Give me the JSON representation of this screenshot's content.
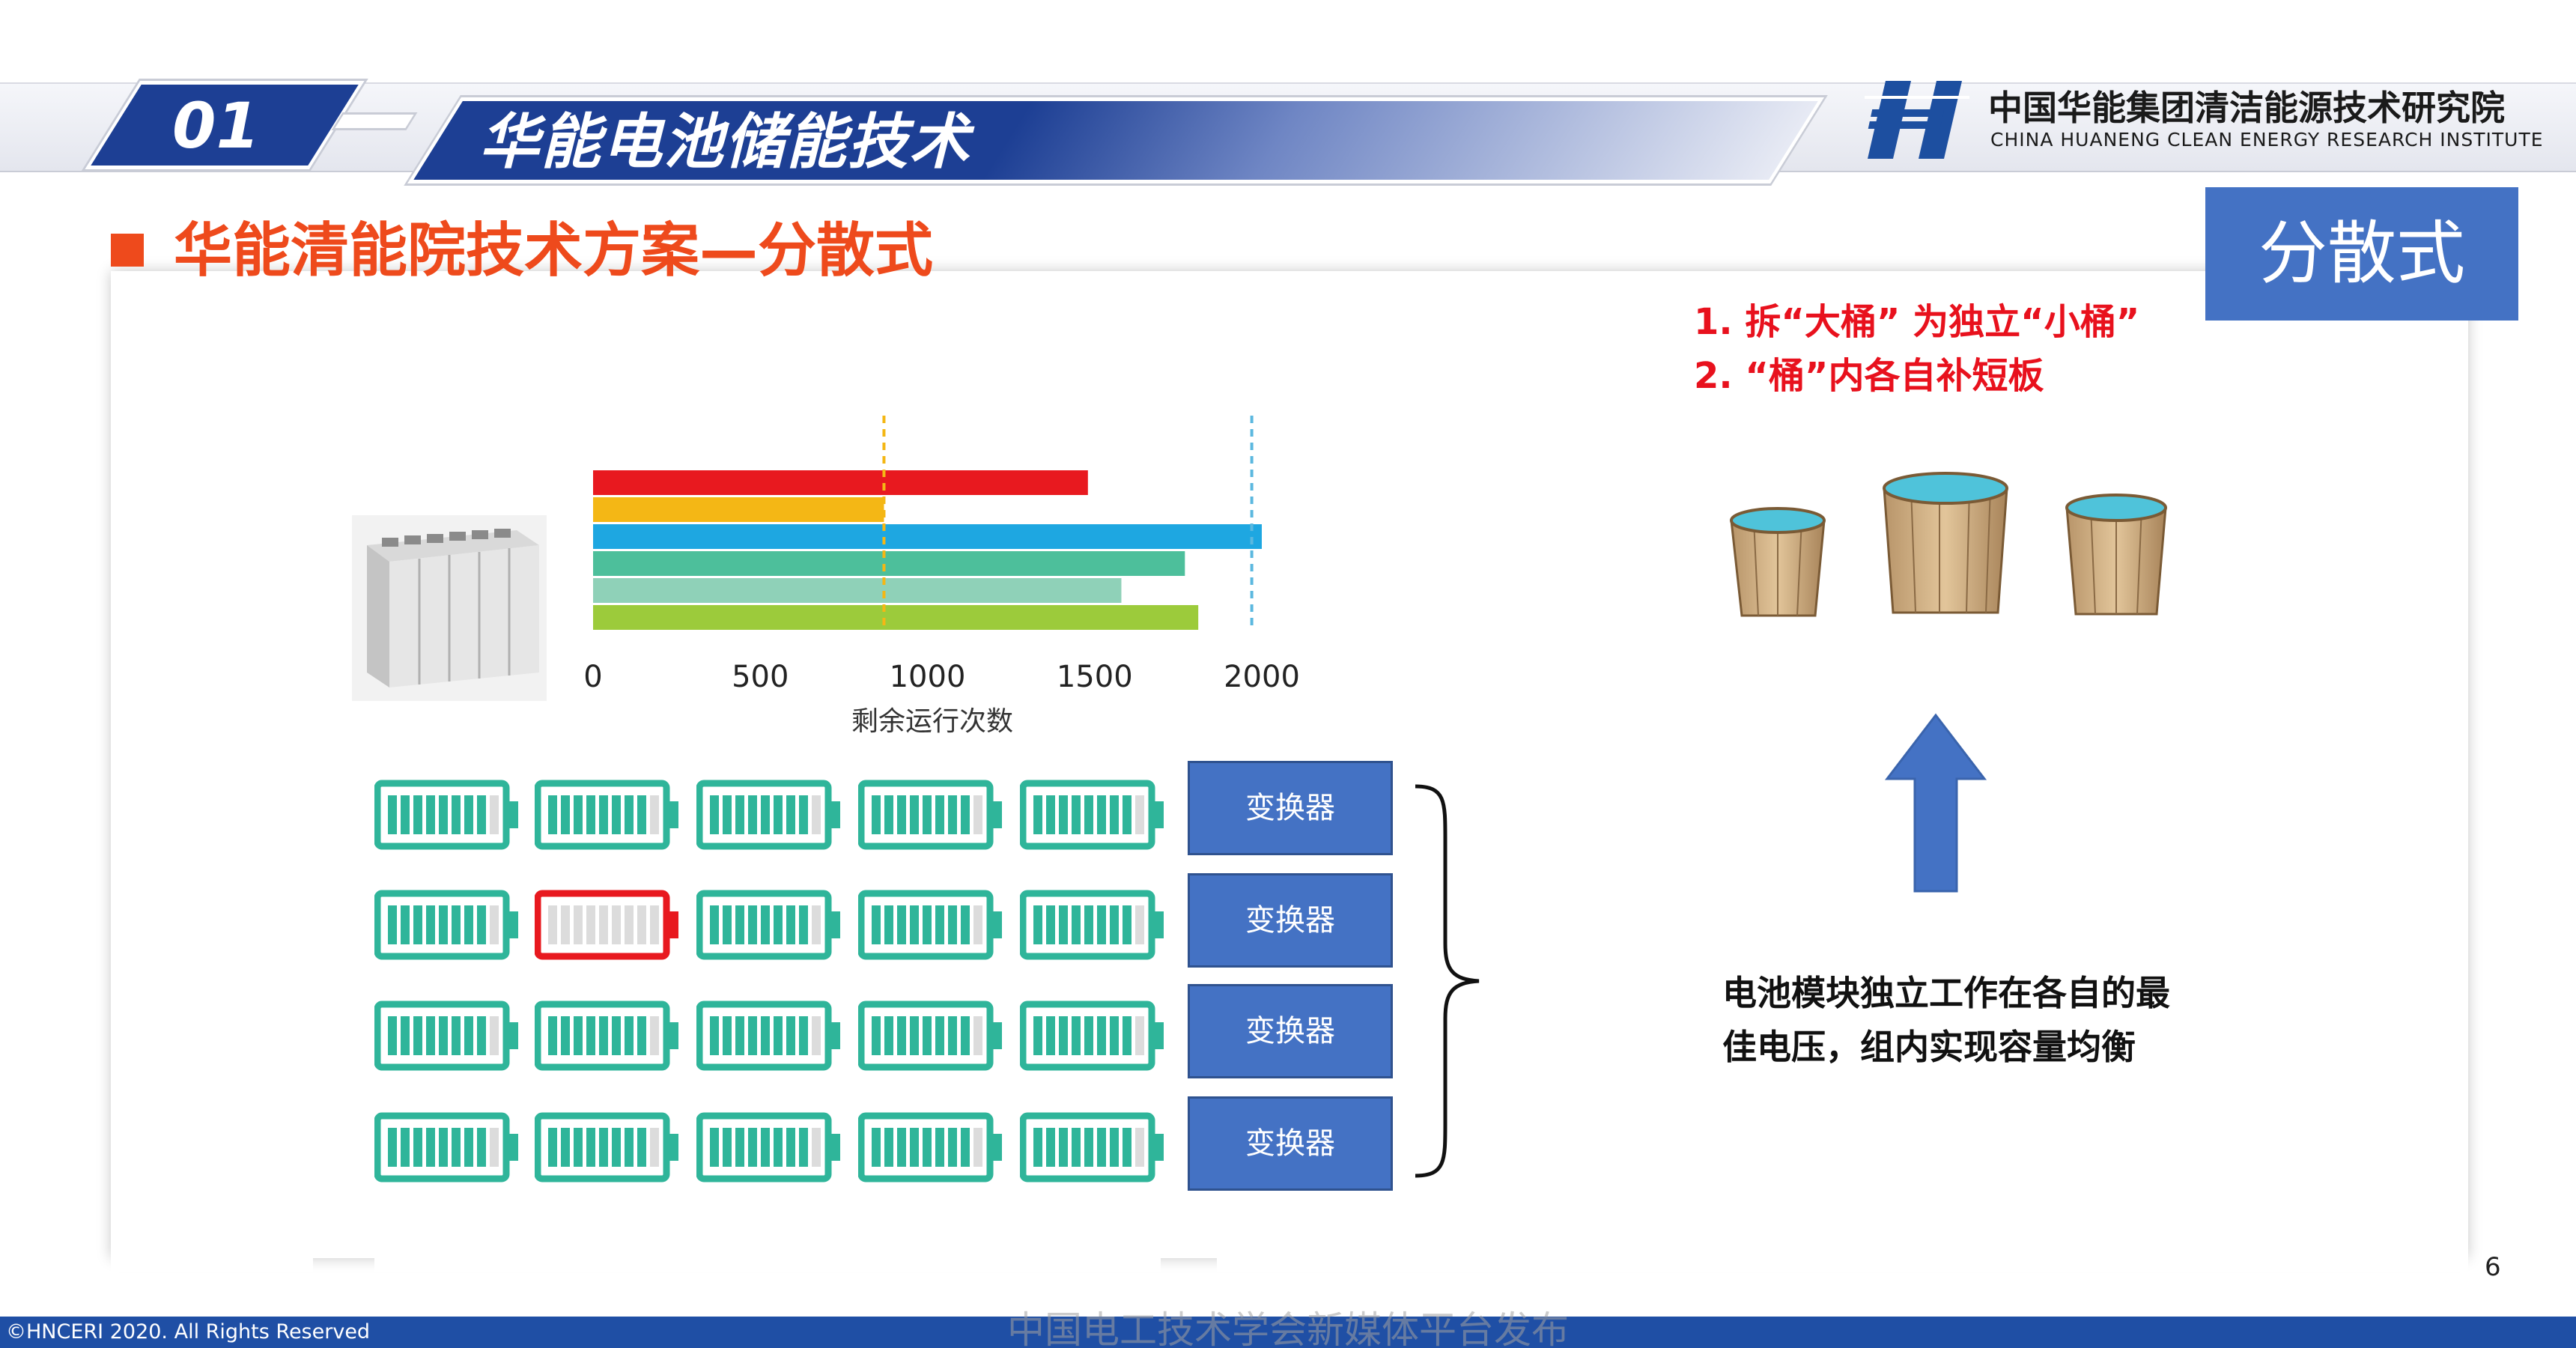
{
  "header": {
    "section_number": "01",
    "title": "华能电池储能技术",
    "logo_cn": "中国华能集团清洁能源技术研究院",
    "logo_en": "CHINA HUANENG CLEAN ENERGY RESEARCH INSTITUTE"
  },
  "section": {
    "title": "华能清能院技术方案—分散式",
    "badge": "分散式"
  },
  "points": [
    "1. 拆“大桶” 为独立“小桶”",
    "2. “桶”内各自补短板"
  ],
  "chart_data": {
    "type": "bar",
    "orientation": "horizontal",
    "xlabel": "剩余运行次数",
    "xlim": [
      0,
      2000
    ],
    "x_ticks": [
      0,
      500,
      1000,
      1500,
      2000
    ],
    "x_tick_labels": [
      "0",
      "500",
      "1000",
      "1500",
      "2000"
    ],
    "bars": [
      {
        "value": 1480,
        "color": "#e8191f"
      },
      {
        "value": 870,
        "color": "#f4b715"
      },
      {
        "value": 2000,
        "color": "#1ea7e1"
      },
      {
        "value": 1770,
        "color": "#4dbf9b"
      },
      {
        "value": 1580,
        "color": "#8fd1b8"
      },
      {
        "value": 1810,
        "color": "#9ccb3b"
      }
    ],
    "reference_lines": [
      {
        "value": 870,
        "color": "#f4b715",
        "style": "dashed"
      },
      {
        "value": 1970,
        "color": "#5bb8df",
        "style": "dashed"
      }
    ]
  },
  "battery_grid": {
    "rows": [
      [
        "normal",
        "normal",
        "normal",
        "normal",
        "normal"
      ],
      [
        "normal",
        "weak",
        "normal",
        "normal",
        "normal"
      ],
      [
        "normal",
        "normal",
        "normal",
        "normal",
        "normal"
      ],
      [
        "normal",
        "normal",
        "normal",
        "normal",
        "normal"
      ]
    ],
    "colors": {
      "normal": "#2fb59a",
      "weak": "#e8191f"
    }
  },
  "converters": [
    "变换器",
    "变换器",
    "变换器",
    "变换器"
  ],
  "description": [
    "电池模块独立工作在各自的最",
    "佳电压，组内实现容量均衡"
  ],
  "page_number": "6",
  "footer": {
    "copyright": "©HNCERI 2020. All Rights Reserved",
    "watermark": "中国电工技术学会新媒体平台发布"
  },
  "colors": {
    "brand_blue": "#1d3f94",
    "accent_orange": "#ee4a1c",
    "badge_blue": "#4472c4",
    "point_red": "#e8111d"
  }
}
